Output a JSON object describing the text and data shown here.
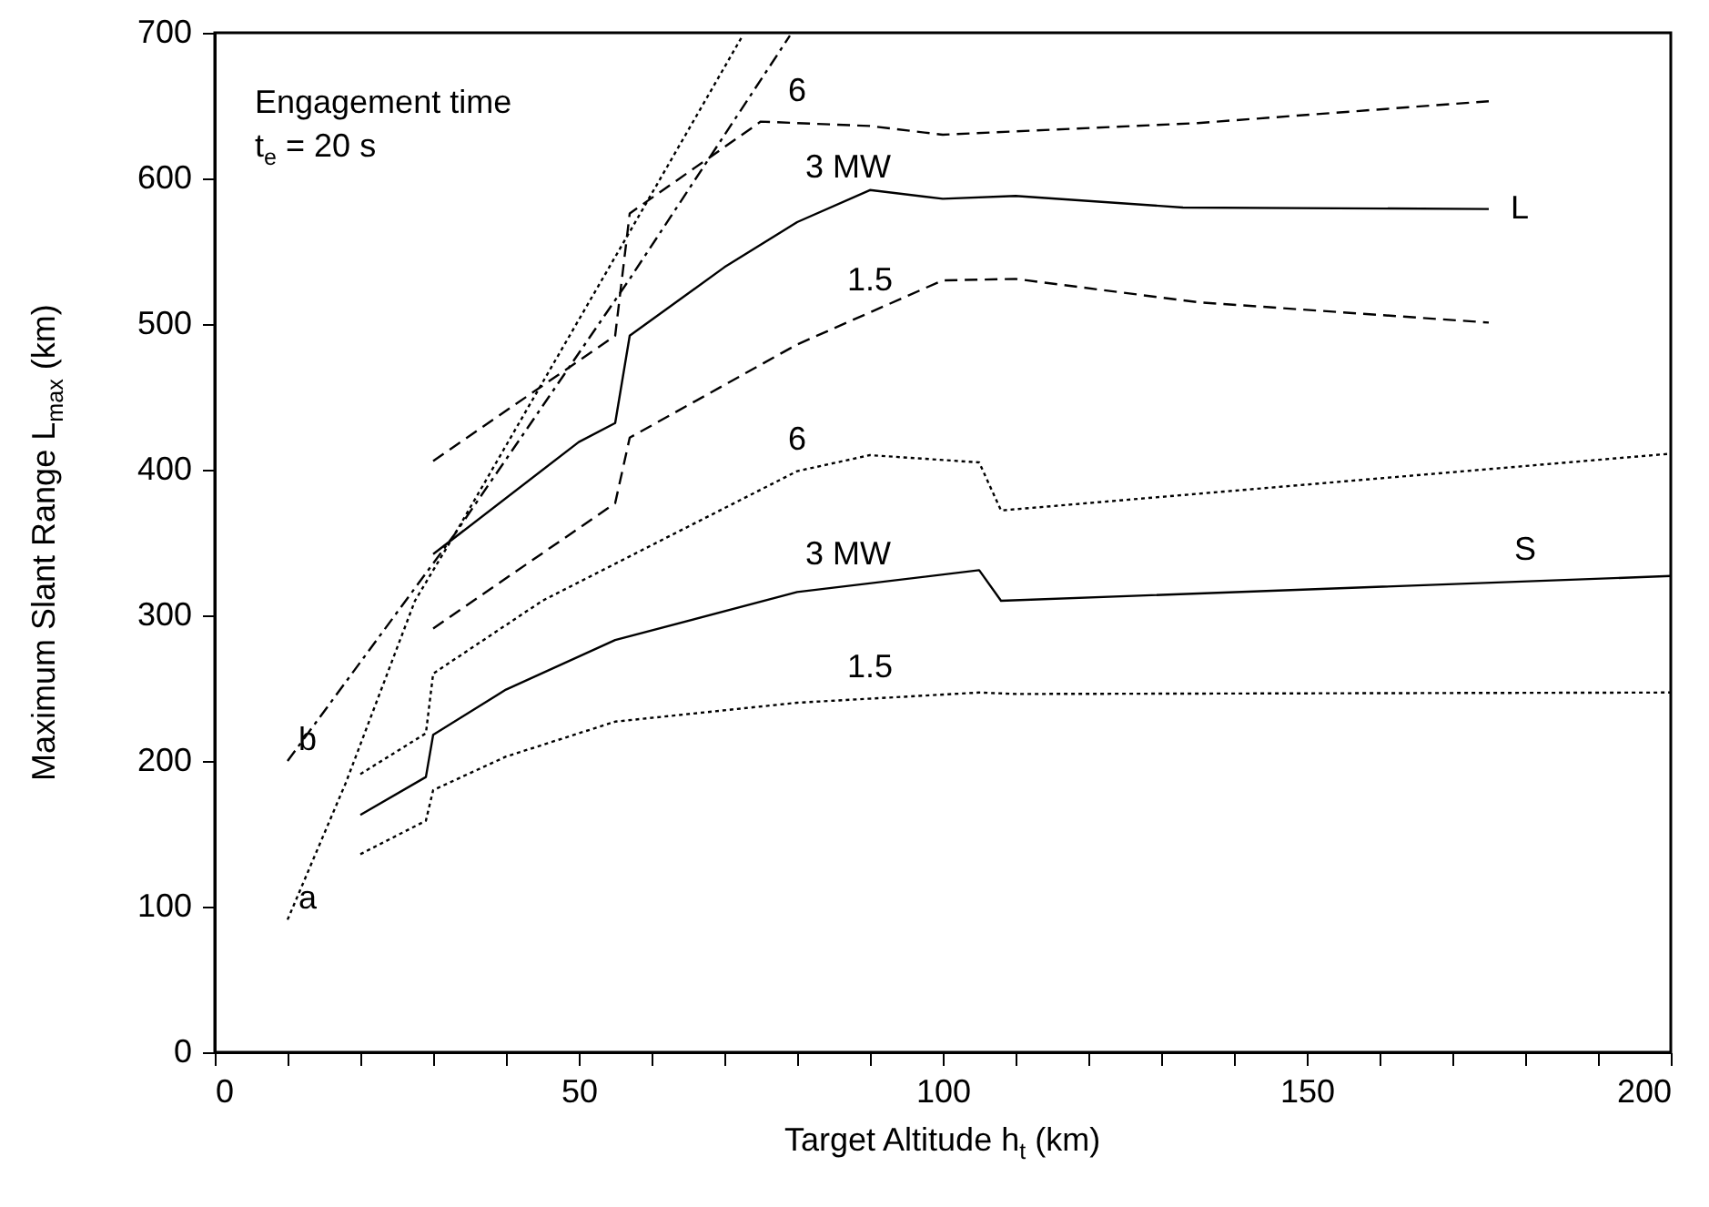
{
  "chart_data": {
    "type": "line",
    "xlabel": "Target Altitude  h$_{t}$ (km)",
    "ylabel": "Maximum Slant Range  L$_{max}$ (km)",
    "xlim": [
      0,
      200
    ],
    "ylim": [
      0,
      700
    ],
    "xticks": [
      0,
      {
        "value": 10,
        "label": null
      },
      {
        "value": 20,
        "label": null
      },
      {
        "value": 30,
        "label": null
      },
      {
        "value": 40,
        "label": null
      },
      50,
      {
        "value": 60,
        "label": null
      },
      {
        "value": 70,
        "label": null
      },
      {
        "value": 80,
        "label": null
      },
      {
        "value": 90,
        "label": null
      },
      100,
      {
        "value": 110,
        "label": null
      },
      {
        "value": 120,
        "label": null
      },
      {
        "value": 130,
        "label": null
      },
      {
        "value": 140,
        "label": null
      },
      150,
      {
        "value": 160,
        "label": null
      },
      {
        "value": 170,
        "label": null
      },
      {
        "value": 180,
        "label": null
      },
      {
        "value": 190,
        "label": null
      },
      200
    ],
    "yticks": [
      0,
      100,
      200,
      300,
      400,
      500,
      600,
      700
    ],
    "grid": false,
    "marker": "none",
    "series": [
      {
        "color": "#000000",
        "line_style": "dashed",
        "x": [
          30,
          55,
          57,
          75,
          90,
          100,
          135,
          175
        ],
        "values": [
          406,
          492,
          576,
          639,
          636,
          630,
          638,
          653
        ]
      },
      {
        "color": "#000000",
        "line_style": "solid",
        "x": [
          30,
          50,
          55,
          57,
          70,
          80,
          90,
          100,
          110,
          133,
          175
        ],
        "values": [
          342,
          419,
          432,
          492,
          539,
          570,
          592,
          586,
          588,
          580,
          579
        ]
      },
      {
        "color": "#000000",
        "line_style": "dashed",
        "x": [
          30,
          55,
          57,
          80,
          100,
          110,
          135,
          175
        ],
        "values": [
          291,
          377,
          422,
          486,
          530,
          531,
          515,
          501
        ]
      },
      {
        "color": "#000000",
        "line_style": "dotted",
        "x": [
          20,
          29,
          30,
          45,
          80,
          90,
          105,
          108,
          200
        ],
        "values": [
          191,
          219,
          260,
          310,
          399,
          410,
          405,
          372,
          411
        ]
      },
      {
        "color": "#000000",
        "line_style": "solid",
        "x": [
          20,
          29,
          30,
          40,
          55,
          80,
          105,
          108,
          200
        ],
        "values": [
          163,
          189,
          218,
          249,
          283,
          316,
          331,
          310,
          327
        ]
      },
      {
        "color": "#000000",
        "line_style": "dotted",
        "x": [
          20,
          29,
          30,
          40,
          55,
          80,
          105,
          110,
          200
        ],
        "values": [
          136,
          159,
          180,
          203,
          227,
          240,
          247,
          246,
          247
        ]
      },
      {
        "color": "#000000",
        "line_style": "dotted",
        "x": [
          10,
          18,
          27.5,
          33,
          58,
          72.5
        ],
        "values": [
          91,
          185,
          310,
          356,
          572,
          698
        ]
      },
      {
        "color": "#000000",
        "line_style": "dashdot",
        "x": [
          10,
          33,
          57,
          79
        ],
        "values": [
          200,
          356,
          531,
          698
        ]
      }
    ],
    "annotations": [
      "Engagement time",
      "t$_{e}$ = 20 s",
      {
        "text": "6",
        "x": 80,
        "y": 638
      },
      {
        "text": "3 MW",
        "x": 87,
        "y": 585.4
      },
      {
        "text": "1.5",
        "x": 90,
        "y": 508
      },
      {
        "text": "L",
        "x": 175,
        "y": 579
      },
      {
        "text": "6",
        "x": 80,
        "y": 399
      },
      {
        "text": "3 MW",
        "x": 87,
        "y": 320.2
      },
      {
        "text": "1.5",
        "x": 90,
        "y": 242.8
      },
      {
        "text": "S",
        "x": 180,
        "y": 323.3
      },
      {
        "text": "b",
        "x": 10,
        "y": 200
      },
      {
        "text": "a",
        "x": 10,
        "y": 91
      }
    ]
  }
}
